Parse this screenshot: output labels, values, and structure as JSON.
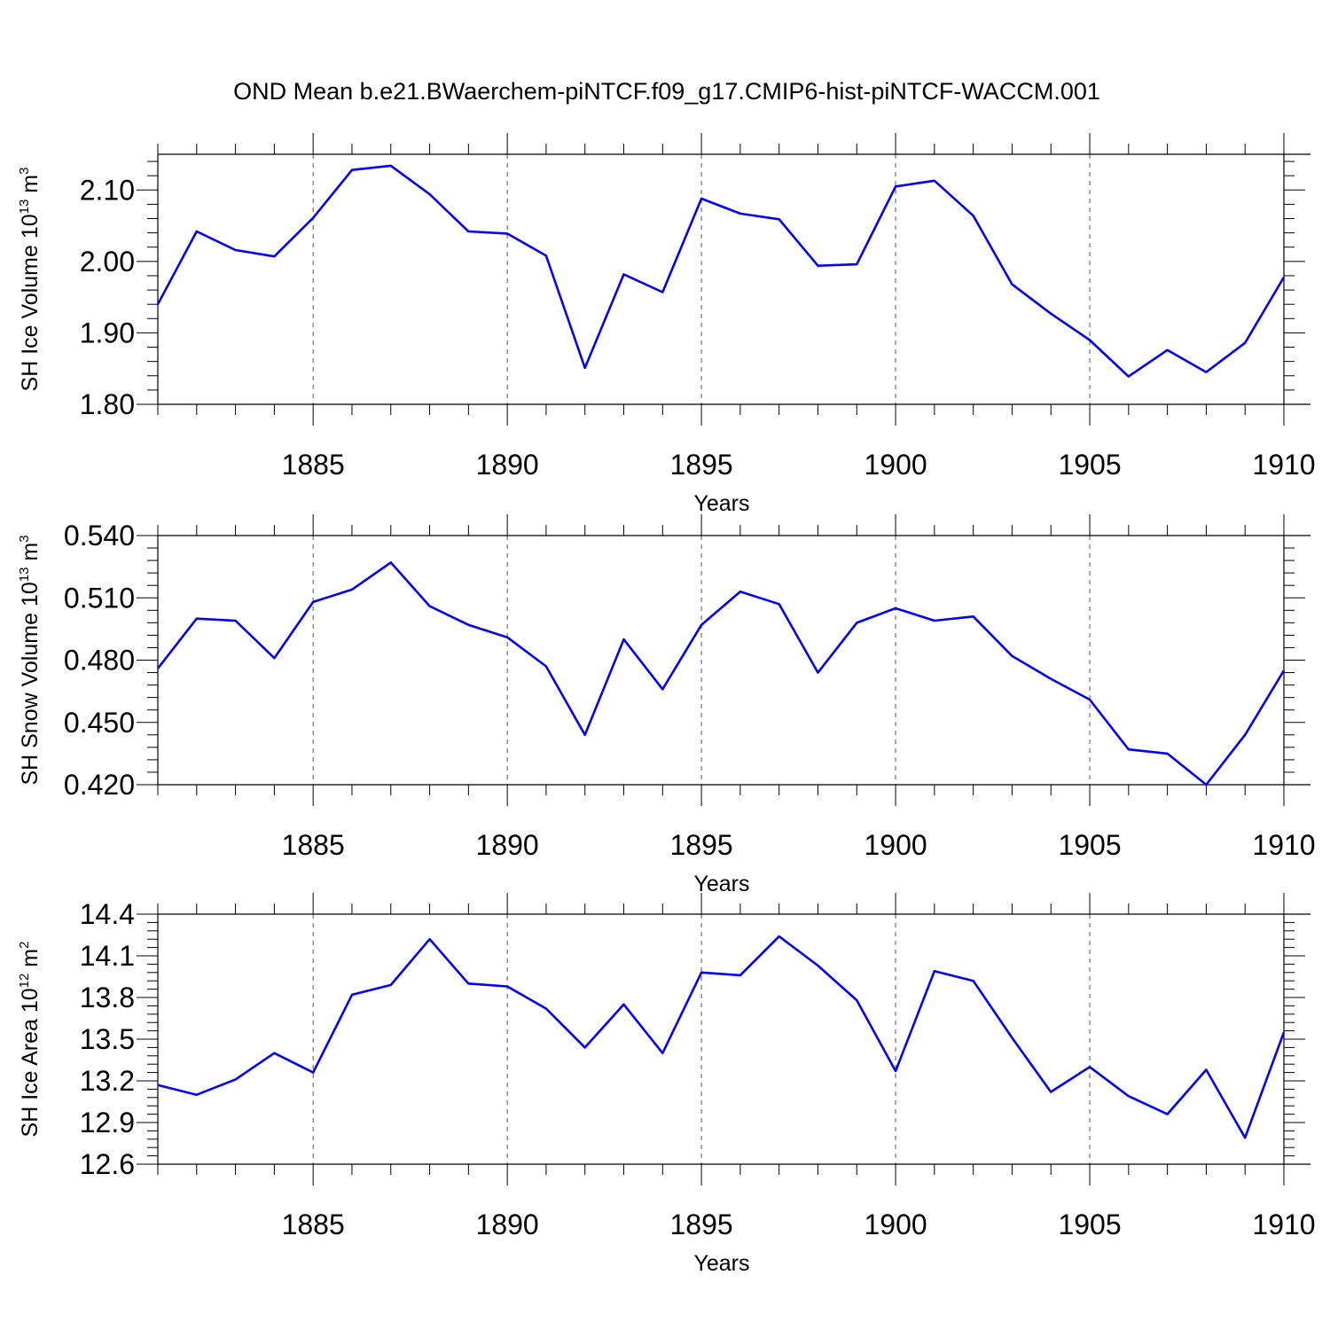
{
  "title": "OND Mean b.e21.BWaerchem-piNTCF.f09_g17.CMIP6-hist-piNTCF-WACCM.001",
  "chart_data": [
    {
      "type": "line",
      "ylabel": {
        "text": "SH Ice Volume 10",
        "sup": "13",
        "unit": " m",
        "unit_sup": "3"
      },
      "xlabel": "Years",
      "xlim": [
        1881,
        1910
      ],
      "ylim": [
        1.8,
        2.15
      ],
      "yticks": [
        "1.80",
        "1.90",
        "2.00",
        "2.10"
      ],
      "xticks": [
        "1885",
        "1890",
        "1895",
        "1900",
        "1905",
        "1910"
      ],
      "grid": "vertical dashed",
      "series": [
        {
          "color": "#0000ff",
          "x": [
            1881,
            1882,
            1883,
            1884,
            1885,
            1886,
            1887,
            1888,
            1889,
            1890,
            1891,
            1892,
            1893,
            1894,
            1895,
            1896,
            1897,
            1898,
            1899,
            1900,
            1901,
            1902,
            1903,
            1904,
            1905,
            1906,
            1907,
            1908,
            1909,
            1910
          ],
          "y": [
            1.94,
            2.042,
            2.016,
            2.007,
            2.061,
            2.128,
            2.134,
            2.094,
            2.042,
            2.039,
            2.008,
            1.851,
            1.982,
            1.957,
            2.088,
            2.067,
            2.059,
            1.994,
            1.996,
            2.105,
            2.113,
            2.064,
            1.968,
            1.927,
            1.89,
            1.839,
            1.876,
            1.845,
            1.886,
            1.978
          ]
        }
      ]
    },
    {
      "type": "line",
      "ylabel": {
        "text": "SH Snow Volume 10",
        "sup": "13",
        "unit": " m",
        "unit_sup": "3"
      },
      "xlabel": "Years",
      "xlim": [
        1881,
        1910
      ],
      "ylim": [
        0.42,
        0.54
      ],
      "yticks": [
        "0.420",
        "0.450",
        "0.480",
        "0.510",
        "0.540"
      ],
      "xticks": [
        "1885",
        "1890",
        "1895",
        "1900",
        "1905",
        "1910"
      ],
      "grid": "vertical dashed",
      "series": [
        {
          "color": "#0000ff",
          "x": [
            1881,
            1882,
            1883,
            1884,
            1885,
            1886,
            1887,
            1888,
            1889,
            1890,
            1891,
            1892,
            1893,
            1894,
            1895,
            1896,
            1897,
            1898,
            1899,
            1900,
            1901,
            1902,
            1903,
            1904,
            1905,
            1906,
            1907,
            1908,
            1909,
            1910
          ],
          "y": [
            0.476,
            0.5,
            0.499,
            0.481,
            0.508,
            0.514,
            0.527,
            0.506,
            0.497,
            0.491,
            0.477,
            0.444,
            0.49,
            0.466,
            0.497,
            0.513,
            0.507,
            0.474,
            0.498,
            0.505,
            0.499,
            0.501,
            0.482,
            0.471,
            0.461,
            0.437,
            0.435,
            0.42,
            0.444,
            0.475
          ]
        }
      ]
    },
    {
      "type": "line",
      "ylabel": {
        "text": "SH Ice Area 10",
        "sup": "12",
        "unit": " m",
        "unit_sup": "2"
      },
      "xlabel": "Years",
      "xlim": [
        1881,
        1910
      ],
      "ylim": [
        12.6,
        14.4
      ],
      "yticks": [
        "12.6",
        "12.9",
        "13.2",
        "13.5",
        "13.8",
        "14.1",
        "14.4"
      ],
      "xticks": [
        "1885",
        "1890",
        "1895",
        "1900",
        "1905",
        "1910"
      ],
      "grid": "vertical dashed",
      "series": [
        {
          "color": "#0000ff",
          "x": [
            1881,
            1882,
            1883,
            1884,
            1885,
            1886,
            1887,
            1888,
            1889,
            1890,
            1891,
            1892,
            1893,
            1894,
            1895,
            1896,
            1897,
            1898,
            1899,
            1900,
            1901,
            1902,
            1903,
            1904,
            1905,
            1906,
            1907,
            1908,
            1909,
            1910
          ],
          "y": [
            13.17,
            13.1,
            13.21,
            13.4,
            13.26,
            13.82,
            13.89,
            14.22,
            13.9,
            13.88,
            13.72,
            13.44,
            13.75,
            13.4,
            13.98,
            13.96,
            14.24,
            14.03,
            13.78,
            13.27,
            13.99,
            13.92,
            13.51,
            13.12,
            13.3,
            13.09,
            12.96,
            13.28,
            12.79,
            13.55
          ]
        }
      ]
    }
  ]
}
